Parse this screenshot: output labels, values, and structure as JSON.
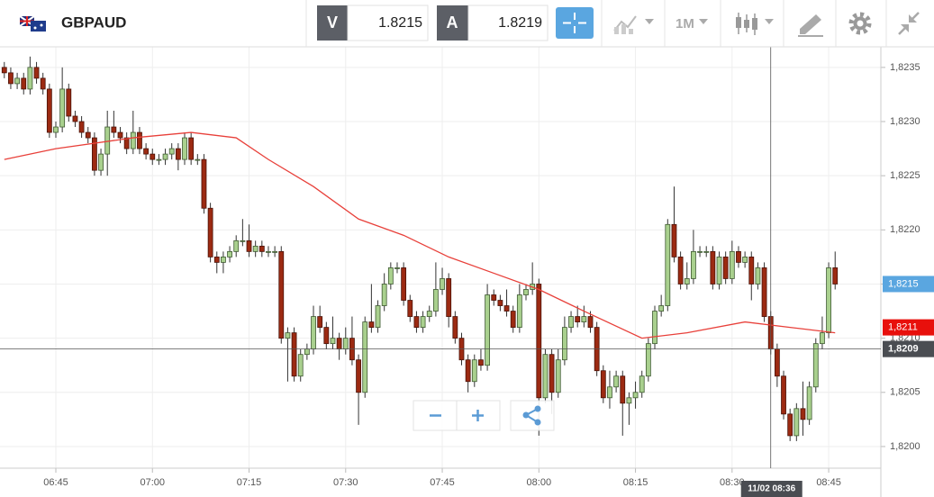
{
  "toolbar": {
    "symbol": "GBPAUD",
    "bid": {
      "label": "V",
      "price": "1.8215"
    },
    "ask": {
      "label": "A",
      "price": "1.8219"
    },
    "timeframe": "1M"
  },
  "chart_data": {
    "type": "candlestick",
    "x": [
      397,
      398,
      399,
      400,
      401,
      402,
      403,
      404,
      405,
      406,
      407,
      408,
      409,
      410,
      411,
      412,
      413,
      414,
      415,
      416,
      417,
      418,
      419,
      420,
      421,
      422,
      423,
      424,
      425,
      426,
      427,
      428,
      429,
      430,
      431,
      432,
      433,
      434,
      435,
      436,
      437,
      438,
      439,
      440,
      441,
      442,
      443,
      444,
      445,
      446,
      447,
      448,
      449,
      450,
      451,
      452,
      453,
      454,
      455,
      456,
      457,
      458,
      459,
      460,
      461,
      462,
      463,
      464,
      465,
      466,
      467,
      468,
      469,
      470,
      471,
      472,
      473,
      474,
      475,
      476,
      477,
      478,
      479,
      480,
      481,
      482,
      483,
      484,
      485,
      486,
      487,
      488,
      489,
      490,
      491,
      492,
      493,
      494,
      495,
      496,
      497,
      498,
      499,
      500,
      501,
      502,
      503,
      504,
      505,
      506,
      507,
      508,
      509,
      510,
      511,
      512,
      513,
      514,
      515,
      516,
      517,
      518,
      519,
      520,
      521,
      522,
      523,
      524,
      525,
      526
    ],
    "open": [
      1.8235,
      1.82345,
      1.82335,
      1.8234,
      1.8233,
      1.8235,
      1.8234,
      1.8233,
      1.8229,
      1.82295,
      1.8233,
      1.82305,
      1.823,
      1.8229,
      1.82285,
      1.82255,
      1.8227,
      1.82295,
      1.8229,
      1.82285,
      1.82275,
      1.8229,
      1.82275,
      1.8227,
      1.82265,
      1.82265,
      1.8227,
      1.82275,
      1.82265,
      1.82285,
      1.82265,
      1.82265,
      1.8222,
      1.82175,
      1.8217,
      1.82175,
      1.8218,
      1.8219,
      1.8219,
      1.8218,
      1.82185,
      1.8218,
      1.8218,
      1.8218,
      1.821,
      1.82105,
      1.82065,
      1.82085,
      1.8209,
      1.8212,
      1.8211,
      1.82095,
      1.821,
      1.8209,
      1.821,
      1.8208,
      1.8205,
      1.82115,
      1.8211,
      1.8213,
      1.8215,
      1.82165,
      1.82165,
      1.82135,
      1.8212,
      1.8211,
      1.8212,
      1.82125,
      1.82145,
      1.82155,
      1.8212,
      1.821,
      1.8208,
      1.8206,
      1.8208,
      1.82075,
      1.8214,
      1.82135,
      1.8213,
      1.82125,
      1.8211,
      1.8214,
      1.82145,
      1.8215,
      1.82045,
      1.82085,
      1.8205,
      1.8208,
      1.8211,
      1.8212,
      1.82115,
      1.8212,
      1.8211,
      1.8207,
      1.82045,
      1.82055,
      1.82065,
      1.8204,
      1.82045,
      1.8205,
      1.82065,
      1.82095,
      1.82125,
      1.8213,
      1.82205,
      1.82175,
      1.8215,
      1.82155,
      1.8218,
      1.8218,
      1.8218,
      1.8215,
      1.82175,
      1.82155,
      1.8218,
      1.8217,
      1.82175,
      1.8215,
      1.82165,
      1.8212,
      1.8209,
      1.82065,
      1.8203,
      1.8201,
      1.82035,
      1.82025,
      1.82055,
      1.82095,
      1.82105,
      1.82165
    ],
    "high": [
      1.82355,
      1.8235,
      1.82345,
      1.82345,
      1.8236,
      1.82355,
      1.82345,
      1.82335,
      1.823,
      1.8235,
      1.82335,
      1.8231,
      1.82305,
      1.82295,
      1.8229,
      1.82275,
      1.8231,
      1.8231,
      1.82295,
      1.8229,
      1.8231,
      1.82295,
      1.8228,
      1.82275,
      1.8227,
      1.82275,
      1.8228,
      1.8228,
      1.8229,
      1.8229,
      1.8227,
      1.8227,
      1.82225,
      1.8218,
      1.8218,
      1.82185,
      1.82195,
      1.8221,
      1.82205,
      1.8219,
      1.8219,
      1.82185,
      1.82185,
      1.82185,
      1.8211,
      1.8211,
      1.8209,
      1.82095,
      1.8213,
      1.8213,
      1.82115,
      1.8212,
      1.82105,
      1.8211,
      1.8212,
      1.82085,
      1.8212,
      1.8215,
      1.82135,
      1.8216,
      1.8217,
      1.8217,
      1.8217,
      1.8214,
      1.82125,
      1.82125,
      1.8213,
      1.8217,
      1.82165,
      1.8216,
      1.82125,
      1.82105,
      1.82085,
      1.82085,
      1.8209,
      1.8215,
      1.82145,
      1.8214,
      1.82145,
      1.8213,
      1.8215,
      1.8215,
      1.8217,
      1.82155,
      1.8209,
      1.8209,
      1.8209,
      1.8212,
      1.82125,
      1.8213,
      1.8213,
      1.82125,
      1.82115,
      1.82075,
      1.8207,
      1.8207,
      1.8207,
      1.8205,
      1.8206,
      1.8207,
      1.821,
      1.8213,
      1.8214,
      1.8221,
      1.8224,
      1.8218,
      1.8217,
      1.822,
      1.82185,
      1.82185,
      1.82185,
      1.8218,
      1.8218,
      1.8219,
      1.82185,
      1.8218,
      1.8218,
      1.8217,
      1.8217,
      1.82125,
      1.82095,
      1.8207,
      1.82035,
      1.8204,
      1.8206,
      1.8206,
      1.821,
      1.8212,
      1.8217,
      1.8218
    ],
    "low": [
      1.8234,
      1.8233,
      1.8233,
      1.82325,
      1.82325,
      1.82335,
      1.82325,
      1.82285,
      1.82285,
      1.8229,
      1.823,
      1.82295,
      1.82285,
      1.8228,
      1.8225,
      1.8225,
      1.8225,
      1.82285,
      1.8228,
      1.8227,
      1.8227,
      1.8227,
      1.82265,
      1.8226,
      1.8226,
      1.8226,
      1.82265,
      1.82255,
      1.8226,
      1.8226,
      1.8226,
      1.82215,
      1.8217,
      1.8216,
      1.8216,
      1.8217,
      1.82175,
      1.82185,
      1.82175,
      1.82175,
      1.82175,
      1.82175,
      1.82175,
      1.82095,
      1.8206,
      1.8206,
      1.8206,
      1.8208,
      1.82085,
      1.82105,
      1.8209,
      1.8209,
      1.8208,
      1.82085,
      1.82075,
      1.8202,
      1.82045,
      1.82105,
      1.82105,
      1.82125,
      1.82145,
      1.8216,
      1.8213,
      1.82115,
      1.82105,
      1.82105,
      1.82115,
      1.8212,
      1.8214,
      1.8211,
      1.82095,
      1.82075,
      1.8205,
      1.82055,
      1.8207,
      1.8207,
      1.8213,
      1.82125,
      1.8212,
      1.82105,
      1.82105,
      1.82135,
      1.8214,
      1.8201,
      1.8204,
      1.8203,
      1.82045,
      1.82075,
      1.82105,
      1.8211,
      1.8211,
      1.82105,
      1.82065,
      1.8204,
      1.82035,
      1.8205,
      1.8201,
      1.8202,
      1.82035,
      1.82045,
      1.8206,
      1.8209,
      1.8212,
      1.82125,
      1.8217,
      1.82145,
      1.82145,
      1.8215,
      1.82175,
      1.82175,
      1.82145,
      1.82145,
      1.8215,
      1.8215,
      1.82165,
      1.82165,
      1.82135,
      1.82145,
      1.82115,
      1.82085,
      1.82055,
      1.82025,
      1.82005,
      1.82005,
      1.8201,
      1.8202,
      1.8205,
      1.8209,
      1.821,
      1.82145
    ],
    "close": [
      1.82345,
      1.82335,
      1.8234,
      1.8233,
      1.8235,
      1.8234,
      1.8233,
      1.8229,
      1.82295,
      1.8233,
      1.82305,
      1.823,
      1.8229,
      1.82285,
      1.82255,
      1.8227,
      1.82295,
      1.8229,
      1.82285,
      1.82275,
      1.8229,
      1.82275,
      1.8227,
      1.82265,
      1.82265,
      1.8227,
      1.82275,
      1.82265,
      1.82285,
      1.82265,
      1.82265,
      1.8222,
      1.82175,
      1.8217,
      1.82175,
      1.8218,
      1.8219,
      1.8219,
      1.8218,
      1.82185,
      1.8218,
      1.8218,
      1.8218,
      1.821,
      1.82105,
      1.82065,
      1.82085,
      1.8209,
      1.8212,
      1.8211,
      1.82095,
      1.821,
      1.8209,
      1.821,
      1.8208,
      1.8205,
      1.82115,
      1.8211,
      1.8213,
      1.8215,
      1.82165,
      1.82165,
      1.82135,
      1.8212,
      1.8211,
      1.8212,
      1.82125,
      1.82145,
      1.82155,
      1.8212,
      1.821,
      1.8208,
      1.8206,
      1.8208,
      1.82075,
      1.8214,
      1.82135,
      1.8213,
      1.82125,
      1.8211,
      1.8214,
      1.82145,
      1.8215,
      1.82045,
      1.82085,
      1.8205,
      1.8208,
      1.8211,
      1.8212,
      1.82115,
      1.8212,
      1.8211,
      1.8207,
      1.82045,
      1.82055,
      1.82065,
      1.8204,
      1.82045,
      1.8205,
      1.82065,
      1.82095,
      1.82125,
      1.8213,
      1.82205,
      1.82175,
      1.8215,
      1.82155,
      1.8218,
      1.8218,
      1.8218,
      1.8215,
      1.82175,
      1.82155,
      1.8218,
      1.8217,
      1.82175,
      1.8215,
      1.82165,
      1.8212,
      1.8209,
      1.82065,
      1.8203,
      1.8201,
      1.82035,
      1.82025,
      1.82055,
      1.82095,
      1.82105,
      1.82165,
      1.8215
    ],
    "up_color": "#a9d08e",
    "down_color": "#9c2a12",
    "ma": {
      "color": "#e8403a",
      "x": [
        397,
        405,
        417,
        426,
        433,
        438,
        445,
        452,
        459,
        466,
        473,
        480,
        487,
        496,
        503,
        512,
        519,
        526
      ],
      "values": [
        1.82265,
        1.82275,
        1.82285,
        1.8229,
        1.82285,
        1.82265,
        1.8224,
        1.8221,
        1.82195,
        1.82175,
        1.8216,
        1.82145,
        1.82125,
        1.821,
        1.82105,
        1.82115,
        1.8211,
        1.82105
      ]
    },
    "xlim": [
      396.33,
      533.1
    ],
    "xticks": [
      {
        "value": 405,
        "label": "06:45"
      },
      {
        "value": 420,
        "label": "07:00"
      },
      {
        "value": 435,
        "label": "07:15"
      },
      {
        "value": 450,
        "label": "07:30"
      },
      {
        "value": 465,
        "label": "07:45"
      },
      {
        "value": 480,
        "label": "08:00"
      },
      {
        "value": 495,
        "label": "08:15"
      },
      {
        "value": 510,
        "label": "08:30"
      },
      {
        "value": 525,
        "label": "08:45"
      }
    ],
    "ylim": [
      1.8198,
      1.82369
    ],
    "yticks": [
      {
        "value": 1.82,
        "label": "1,8200"
      },
      {
        "value": 1.8205,
        "label": "1,8205"
      },
      {
        "value": 1.821,
        "label": "1,8210"
      },
      {
        "value": 1.8215,
        "label": "1,8215"
      },
      {
        "value": 1.822,
        "label": "1,8220"
      },
      {
        "value": 1.8225,
        "label": "1,8225"
      },
      {
        "value": 1.823,
        "label": "1,8230"
      },
      {
        "value": 1.8235,
        "label": "1,8235"
      }
    ],
    "grid": true,
    "price_tags": [
      {
        "value": 1.8215,
        "label": "1,8215",
        "color": "#5aa6e0"
      },
      {
        "value": 1.8211,
        "label": "1,8211",
        "color": "#e8100c"
      }
    ],
    "crosshair": {
      "x": 516,
      "x_label": "11/02 08:36",
      "y": 1.8209,
      "y_label": "1,8209",
      "color": "#555555"
    }
  }
}
